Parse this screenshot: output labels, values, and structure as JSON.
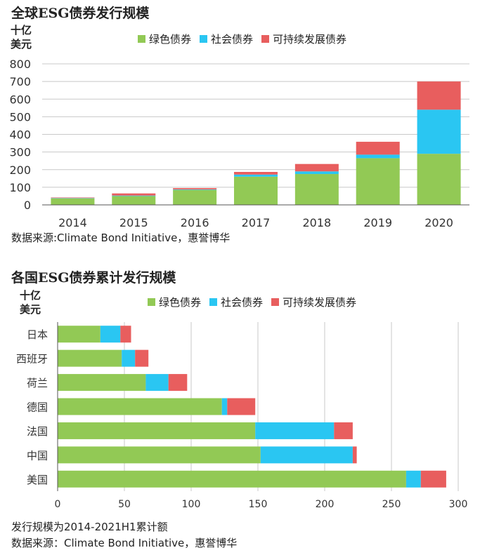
{
  "colors": {
    "green": "#92c955",
    "blue": "#2ac6f2",
    "red": "#e85e5e",
    "grid": "#c8c8c8",
    "axis": "#555555"
  },
  "chart1": {
    "title": "全球ESG债券发行规模",
    "unit_line1": "十亿",
    "unit_line2": "美元",
    "source": "数据来源:Climate Bond Initiative，惠誉博华"
  },
  "chart2": {
    "title": "各国ESG债券累计发行规模",
    "unit_line1": "十亿",
    "unit_line2": "美元",
    "note": "发行规模为2014-2021H1累计额",
    "source": "数据来源：Climate Bond Initiative，惠誉博华"
  },
  "legend": [
    "绿色债券",
    "社会债券",
    "可持续发展债券"
  ],
  "chart_data": [
    {
      "type": "bar",
      "stacked": true,
      "orientation": "vertical",
      "title": "全球ESG债券发行规模",
      "ylabel": "十亿美元",
      "categories": [
        "2014",
        "2015",
        "2016",
        "2017",
        "2018",
        "2019",
        "2020"
      ],
      "series": [
        {
          "name": "绿色债券",
          "values": [
            37,
            50,
            85,
            160,
            175,
            265,
            290
          ]
        },
        {
          "name": "社会债券",
          "values": [
            2,
            3,
            3,
            12,
            15,
            20,
            250
          ]
        },
        {
          "name": "可持续发展债券",
          "values": [
            3,
            12,
            7,
            15,
            42,
            73,
            160
          ]
        }
      ],
      "ylim": [
        0,
        800
      ],
      "yticks": [
        "0",
        "100",
        "200",
        "300",
        "400",
        "500",
        "600",
        "700",
        "800"
      ],
      "grid": true,
      "legend_position": "top"
    },
    {
      "type": "bar",
      "stacked": true,
      "orientation": "horizontal",
      "title": "各国ESG债券累计发行规模",
      "xlabel": "十亿美元",
      "categories": [
        "日本",
        "西班牙",
        "荷兰",
        "德国",
        "法国",
        "中国",
        "美国"
      ],
      "series": [
        {
          "name": "绿色债券",
          "values": [
            32,
            48,
            66,
            123,
            148,
            152,
            261
          ]
        },
        {
          "name": "社会债券",
          "values": [
            15,
            10,
            17,
            4,
            59,
            69,
            11
          ]
        },
        {
          "name": "可持续发展债券",
          "values": [
            8,
            10,
            14,
            21,
            14,
            3,
            19
          ]
        }
      ],
      "xlim": [
        0,
        300
      ],
      "xticks": [
        "0",
        "50",
        "100",
        "150",
        "200",
        "250",
        "300"
      ],
      "grid": true,
      "legend_position": "top"
    }
  ]
}
